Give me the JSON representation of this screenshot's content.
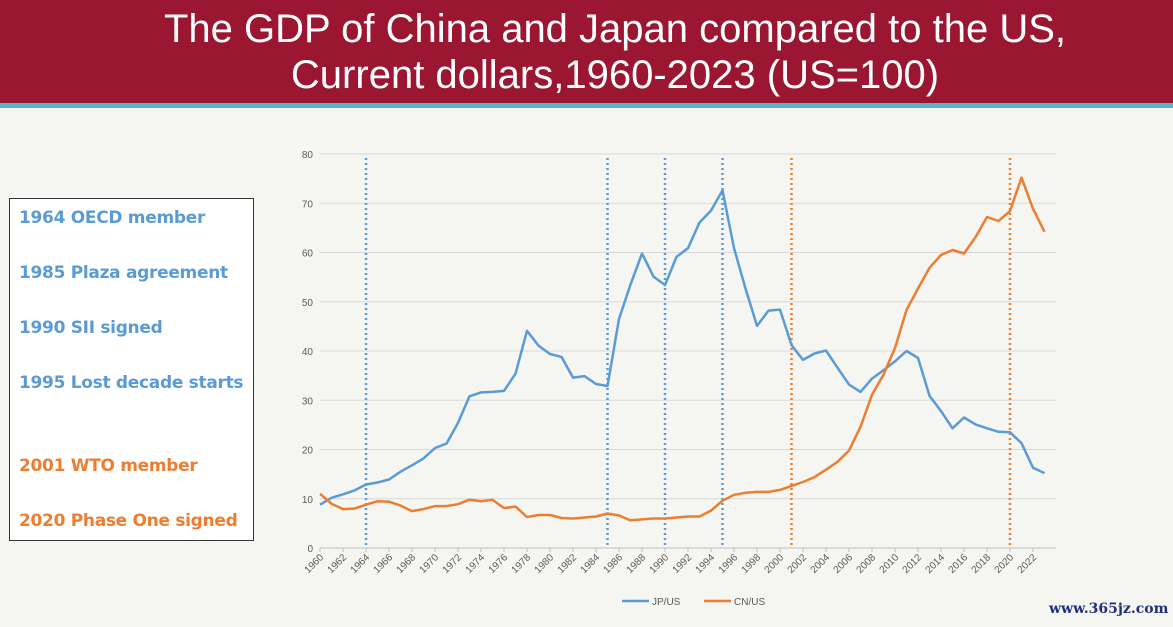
{
  "title": [
    "The GDP of China and Japan compared to the US,",
    "Current dollars,1960-2023 (US=100)"
  ],
  "events": [
    {
      "label": "1964 OECD member",
      "color": "blue"
    },
    {
      "label": "1985 Plaza agreement",
      "color": "blue"
    },
    {
      "label": "1990 SII signed",
      "color": "blue"
    },
    {
      "label": "1995 Lost decade starts",
      "color": "blue"
    },
    {
      "label": "2001 WTO member",
      "color": "orange"
    },
    {
      "label": "2020 Phase One signed",
      "color": "orange"
    }
  ],
  "watermark": "www.365jz.com",
  "colors": {
    "header": "#9b1631",
    "stripe": "#5ab4c9",
    "jp": "#5b9bd5",
    "cn": "#ed7d31"
  },
  "chart_data": {
    "type": "line",
    "title": "",
    "xlabel": "",
    "ylabel": "",
    "ylim": [
      0,
      80
    ],
    "yticks": [
      0,
      10,
      20,
      30,
      40,
      50,
      60,
      70,
      80
    ],
    "xlim": [
      1960,
      2023
    ],
    "xticks": [
      1960,
      1962,
      1964,
      1966,
      1968,
      1970,
      1972,
      1974,
      1976,
      1978,
      1980,
      1982,
      1984,
      1986,
      1988,
      1990,
      1992,
      1994,
      1996,
      1998,
      2000,
      2002,
      2004,
      2006,
      2008,
      2010,
      2012,
      2014,
      2016,
      2018,
      2020,
      2022
    ],
    "grid": "horizontal",
    "legend": "bottom",
    "x": [
      1960,
      1961,
      1962,
      1963,
      1964,
      1965,
      1966,
      1967,
      1968,
      1969,
      1970,
      1971,
      1972,
      1973,
      1974,
      1975,
      1976,
      1977,
      1978,
      1979,
      1980,
      1981,
      1982,
      1983,
      1984,
      1985,
      1986,
      1987,
      1988,
      1989,
      1990,
      1991,
      1992,
      1993,
      1994,
      1995,
      1996,
      1997,
      1998,
      1999,
      2000,
      2001,
      2002,
      2003,
      2004,
      2005,
      2006,
      2007,
      2008,
      2009,
      2010,
      2011,
      2012,
      2013,
      2014,
      2015,
      2016,
      2017,
      2018,
      2019,
      2020,
      2021,
      2022,
      2023
    ],
    "series": [
      {
        "name": "JP/US",
        "color": "#5b9bd5",
        "values": [
          8.8,
          10.2,
          10.9,
          11.7,
          12.9,
          13.3,
          13.9,
          15.5,
          16.8,
          18.2,
          20.3,
          21.2,
          25.4,
          30.8,
          31.6,
          31.7,
          31.9,
          35.4,
          44.1,
          41.1,
          39.4,
          38.8,
          34.6,
          34.9,
          33.3,
          32.9,
          46.5,
          53.5,
          59.8,
          55.1,
          53.4,
          59.1,
          60.9,
          66.1,
          68.5,
          72.6,
          60.9,
          52.7,
          45.1,
          48.2,
          48.4,
          41.2,
          38.2,
          39.5,
          40.1,
          36.6,
          33.2,
          31.7,
          34.4,
          36.1,
          37.9,
          40.0,
          38.6,
          30.9,
          27.8,
          24.3,
          26.5,
          25.1,
          24.3,
          23.6,
          23.5,
          21.3,
          16.3,
          15.2
        ]
      },
      {
        "name": "CN/US",
        "color": "#ed7d31",
        "values": [
          11.0,
          9.0,
          7.9,
          8.0,
          8.8,
          9.5,
          9.4,
          8.6,
          7.5,
          7.9,
          8.5,
          8.5,
          8.9,
          9.8,
          9.5,
          9.8,
          8.1,
          8.4,
          6.3,
          6.7,
          6.7,
          6.1,
          6.0,
          6.2,
          6.4,
          7.0,
          6.6,
          5.6,
          5.8,
          6.0,
          6.0,
          6.2,
          6.4,
          6.4,
          7.6,
          9.6,
          10.8,
          11.2,
          11.4,
          11.4,
          11.8,
          12.6,
          13.4,
          14.4,
          15.9,
          17.5,
          19.8,
          24.6,
          31.1,
          35.2,
          40.6,
          48.3,
          52.7,
          56.9,
          59.5,
          60.5,
          59.8,
          63.1,
          67.2,
          66.4,
          68.4,
          75.2,
          68.9,
          64.2
        ]
      }
    ],
    "vlines": [
      {
        "year": 1964,
        "color": "#5b9bd5"
      },
      {
        "year": 1985,
        "color": "#5b9bd5"
      },
      {
        "year": 1990,
        "color": "#5b9bd5"
      },
      {
        "year": 1995,
        "color": "#5b9bd5"
      },
      {
        "year": 2001,
        "color": "#ed7d31"
      },
      {
        "year": 2020,
        "color": "#ed7d31"
      }
    ]
  }
}
